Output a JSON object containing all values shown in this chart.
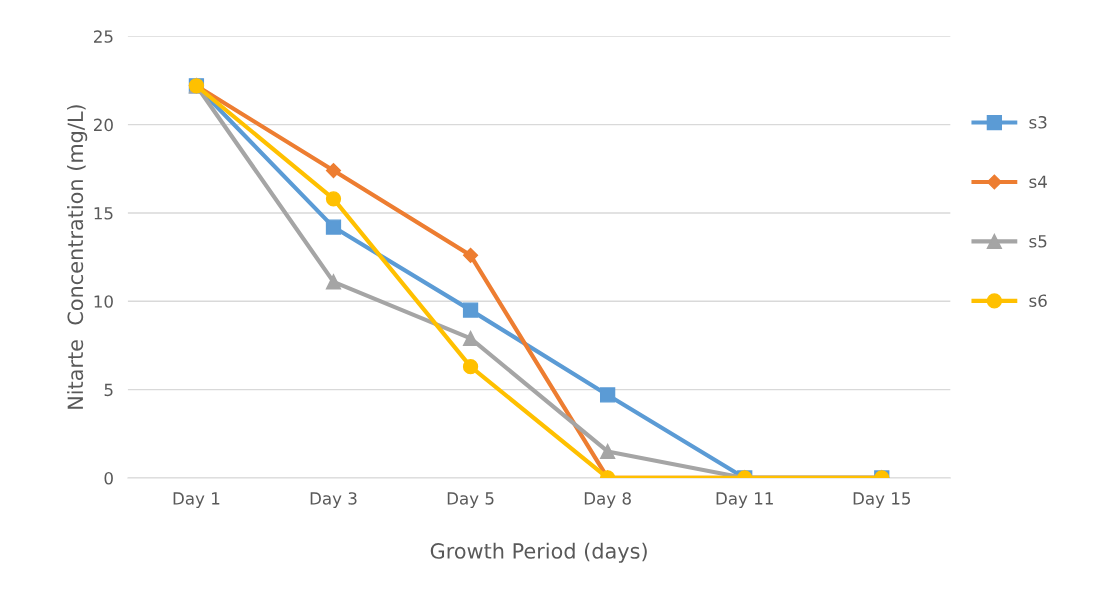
{
  "chart_data": {
    "type": "line",
    "xlabel": "Growth Period (days)",
    "ylabel": "Nitarte  Concentration (mg/L)",
    "categories": [
      "Day 1",
      "Day 3",
      "Day 5",
      "Day 8",
      "Day 11",
      "Day 15"
    ],
    "series": [
      {
        "name": "s3",
        "color": "#5b9bd5",
        "marker": "square",
        "values": [
          22.2,
          14.2,
          9.5,
          4.7,
          0,
          0
        ]
      },
      {
        "name": "s4",
        "color": "#ed7d31",
        "marker": "diamond",
        "values": [
          22.2,
          17.4,
          12.6,
          0,
          0,
          0
        ]
      },
      {
        "name": "s5",
        "color": "#a5a5a5",
        "marker": "triangle",
        "values": [
          22.2,
          11.1,
          7.9,
          1.5,
          0,
          0
        ]
      },
      {
        "name": "s6",
        "color": "#ffc000",
        "marker": "circle",
        "values": [
          22.2,
          15.8,
          6.3,
          0,
          0,
          0
        ]
      }
    ],
    "ylim": [
      0,
      25
    ],
    "yticks": [
      0,
      5,
      10,
      15,
      20,
      25
    ],
    "grid": "y",
    "legend": "right",
    "line_style": "solid"
  }
}
